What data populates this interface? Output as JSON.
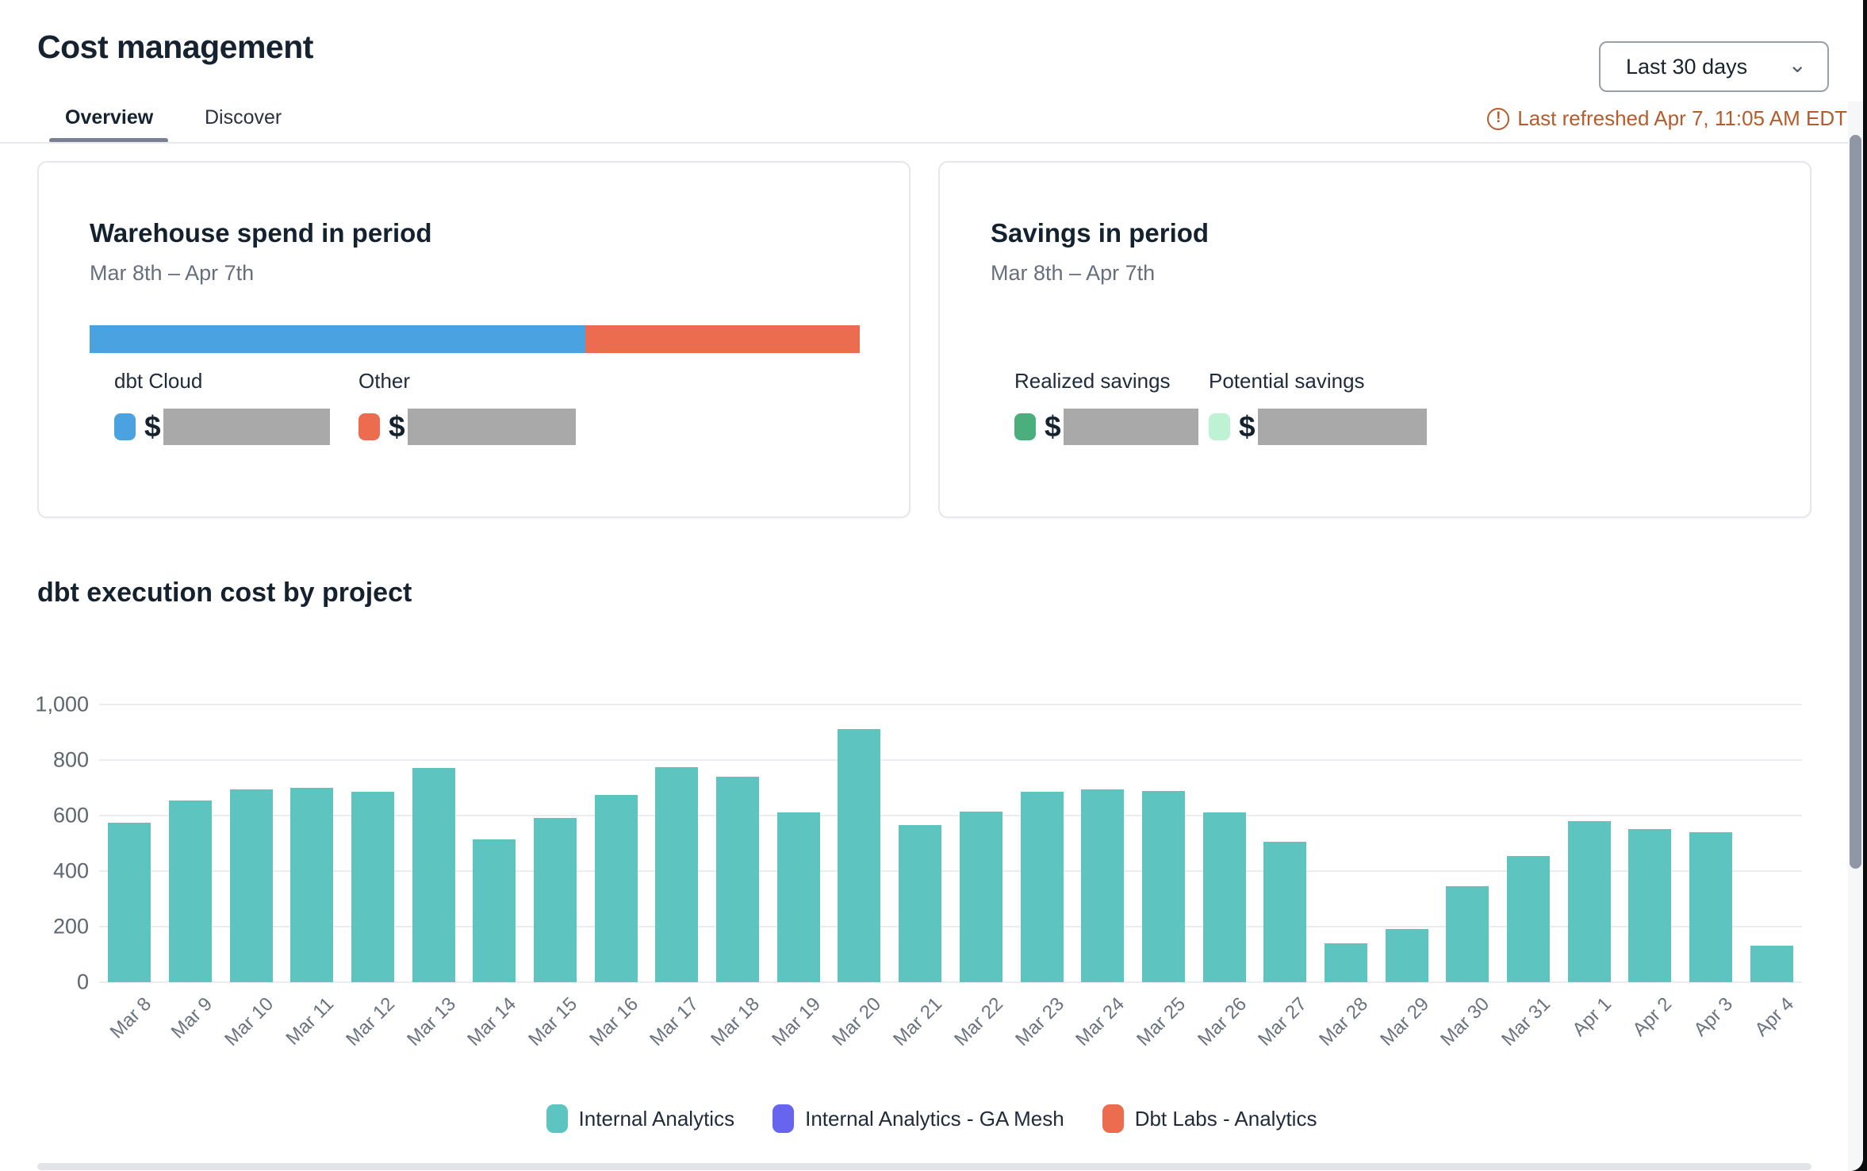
{
  "header": {
    "title": "Cost management",
    "tabs": [
      {
        "label": "Overview",
        "active": true
      },
      {
        "label": "Discover",
        "active": false
      }
    ],
    "date_range_selector": {
      "value": "Last 30 days"
    },
    "last_refreshed": "Last refreshed Apr 7, 11:05 AM EDT"
  },
  "icons": {
    "warning": "!",
    "chevron_down": "⌄"
  },
  "cards": {
    "warehouse_spend": {
      "title": "Warehouse spend in period",
      "subtitle": "Mar 8th – Apr 7th",
      "stacked_bar": {
        "segments": [
          {
            "name": "dbt Cloud",
            "color": "#4aa3e0",
            "pct": 64.4
          },
          {
            "name": "Other",
            "color": "#ec6c50",
            "pct": 35.6
          }
        ]
      },
      "legend": [
        {
          "label": "dbt Cloud",
          "color": "#4aa3e0",
          "value_prefix": "$",
          "value_redacted": true
        },
        {
          "label": "Other",
          "color": "#ec6c50",
          "value_prefix": "$",
          "value_redacted": true
        }
      ]
    },
    "savings": {
      "title": "Savings in period",
      "subtitle": "Mar 8th – Apr 7th",
      "legend": [
        {
          "label": "Realized savings",
          "color": "#4bae7d",
          "value_prefix": "$",
          "value_redacted": true
        },
        {
          "label": "Potential savings",
          "color": "#bdf2d2",
          "value_prefix": "$",
          "value_redacted": true
        }
      ]
    }
  },
  "chart_section": {
    "title": "dbt execution cost by project"
  },
  "chart_data": {
    "type": "bar",
    "title": "dbt execution cost by project",
    "categories": [
      "Mar 8",
      "Mar 9",
      "Mar 10",
      "Mar 11",
      "Mar 12",
      "Mar 13",
      "Mar 14",
      "Mar 15",
      "Mar 16",
      "Mar 17",
      "Mar 18",
      "Mar 19",
      "Mar 20",
      "Mar 21",
      "Mar 22",
      "Mar 23",
      "Mar 24",
      "Mar 25",
      "Mar 26",
      "Mar 27",
      "Mar 28",
      "Mar 29",
      "Mar 30",
      "Mar 31",
      "Apr 1",
      "Apr 2",
      "Apr 3",
      "Apr 4"
    ],
    "series": [
      {
        "name": "Internal Analytics",
        "color": "#5dc4bf",
        "values": [
          575,
          655,
          695,
          700,
          685,
          770,
          515,
          590,
          675,
          775,
          740,
          610,
          910,
          565,
          615,
          685,
          695,
          690,
          610,
          505,
          140,
          190,
          345,
          455,
          580,
          550,
          540,
          130
        ]
      }
    ],
    "legend": [
      {
        "label": "Internal Analytics",
        "color": "#5dc4bf"
      },
      {
        "label": "Internal Analytics - GA Mesh",
        "color": "#6765f0"
      },
      {
        "label": "Dbt Labs - Analytics",
        "color": "#ec6c50"
      }
    ],
    "xlabel": "",
    "ylabel": "",
    "ylim": [
      0,
      1000
    ],
    "yticks": [
      0,
      200,
      400,
      600,
      800,
      1000
    ],
    "ytick_labels": [
      "0",
      "200",
      "400",
      "600",
      "800",
      "1,000"
    ],
    "grid": true,
    "legend_position": "bottom",
    "xtick_rotation": -45
  }
}
